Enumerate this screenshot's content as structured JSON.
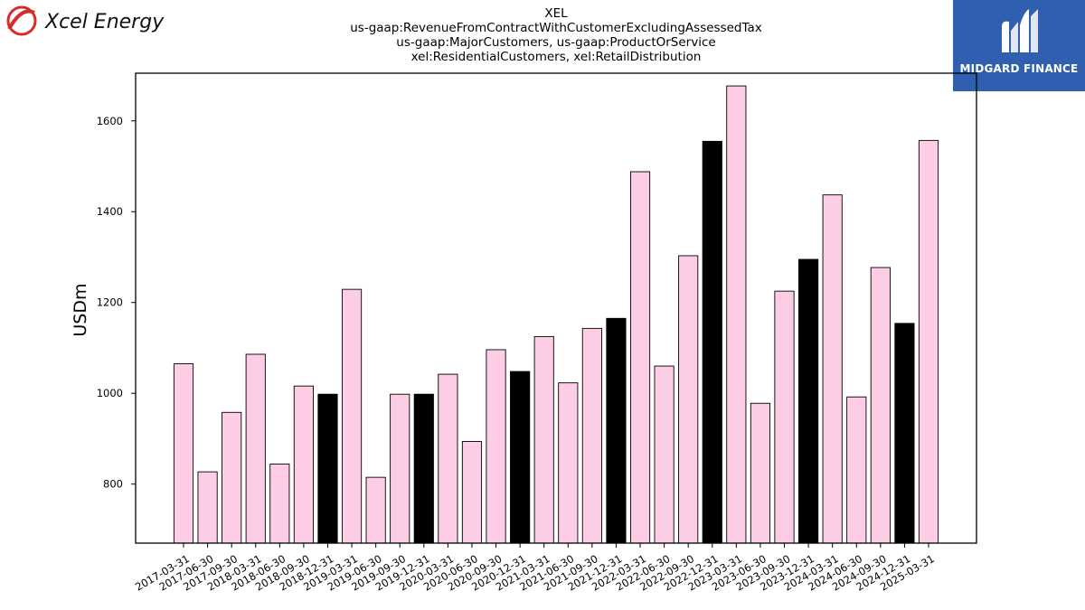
{
  "header": {
    "company_logo_text": "Xcel Energy",
    "watermark_text": "MIDGARD FINANCE",
    "title_lines": [
      "XEL",
      "us-gaap:RevenueFromContractWithCustomerExcludingAssessedTax",
      "us-gaap:MajorCustomers, us-gaap:ProductOrService",
      "xel:ResidentialCustomers, xel:RetailDistribution"
    ]
  },
  "colors": {
    "bar_default": "#fccde5",
    "bar_highlight": "#000000",
    "bar_edge": "#000000",
    "xcel_red": "#d62c2c",
    "midgard_blue": "#2f5fae"
  },
  "chart_data": {
    "type": "bar",
    "ylabel": "USDm",
    "xlabel": "",
    "ylim": [
      670,
      1705
    ],
    "yticks": [
      800,
      1000,
      1200,
      1400,
      1600
    ],
    "grid": false,
    "legend": "none",
    "categories": [
      "2017-03-31",
      "2017-06-30",
      "2017-09-30",
      "2018-03-31",
      "2018-06-30",
      "2018-09-30",
      "2018-12-31",
      "2019-03-31",
      "2019-06-30",
      "2019-09-30",
      "2019-12-31",
      "2020-03-31",
      "2020-06-30",
      "2020-09-30",
      "2020-12-31",
      "2021-03-31",
      "2021-06-30",
      "2021-09-30",
      "2021-12-31",
      "2022-03-31",
      "2022-06-30",
      "2022-09-30",
      "2022-12-31",
      "2023-03-31",
      "2023-06-30",
      "2023-09-30",
      "2023-12-31",
      "2024-03-31",
      "2024-06-30",
      "2024-09-30",
      "2024-12-31",
      "2025-03-31"
    ],
    "values": [
      1065,
      827,
      958,
      1086,
      844,
      1016,
      998,
      1229,
      815,
      998,
      998,
      1042,
      894,
      1096,
      1048,
      1125,
      1023,
      1143,
      1165,
      1488,
      1060,
      1303,
      1555,
      1677,
      978,
      1225,
      1295,
      1437,
      992,
      1277,
      1154,
      1557
    ],
    "highlight": [
      false,
      false,
      false,
      false,
      false,
      false,
      true,
      false,
      false,
      false,
      true,
      false,
      false,
      false,
      true,
      false,
      false,
      false,
      true,
      false,
      false,
      false,
      true,
      false,
      false,
      false,
      true,
      false,
      false,
      false,
      true,
      false
    ]
  }
}
